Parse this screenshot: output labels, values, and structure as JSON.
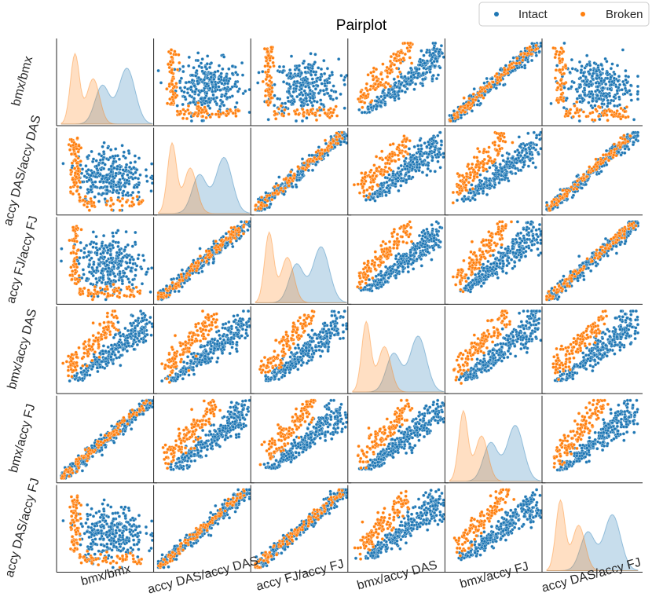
{
  "chart_data": {
    "type": "scatter",
    "title": "Pairplot",
    "variables": [
      "bmx/bmx",
      "accy DAS/accy DAS",
      "accy FJ/accy FJ",
      "bmx/accy DAS",
      "bmx/accy FJ",
      "accy DAS/accy FJ"
    ],
    "diagonal": "kde",
    "legend": {
      "position": "top-right",
      "entries": [
        "Intact",
        "Broken"
      ]
    },
    "series": [
      {
        "name": "Intact",
        "color": "#1f77b4"
      },
      {
        "name": "Broken",
        "color": "#ff7f0e"
      }
    ]
  }
}
